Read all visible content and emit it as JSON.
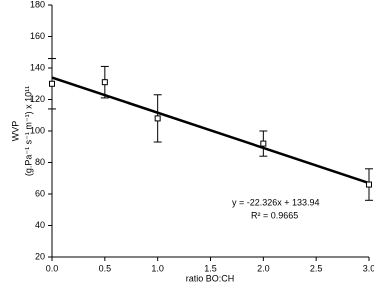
{
  "chart_data": {
    "type": "scatter",
    "x_label": "ratio BO:CH",
    "y_label": "WVP",
    "y_label_units": "(g.Pa⁻¹ s⁻¹ m⁻¹) x 10¹¹",
    "x": [
      0,
      0.5,
      1,
      2,
      3
    ],
    "values": [
      130,
      131,
      108,
      92,
      66
    ],
    "errors": [
      16,
      10,
      15,
      8,
      10
    ],
    "trendline": {
      "slope": -22.326,
      "intercept": 133.94,
      "equation": "y = -22.326x + 133.94",
      "r2": "R² = 0.9665"
    },
    "xlim": [
      0,
      3
    ],
    "ylim": [
      20,
      180
    ],
    "xticks": [
      {
        "value": 0,
        "label": "0.0"
      },
      0.5,
      {
        "value": 1,
        "label": "1.0"
      },
      1.5,
      {
        "value": 2,
        "label": "2.0"
      },
      2.5,
      {
        "value": 3,
        "label": "3.0"
      }
    ],
    "yticks": [
      20,
      40,
      60,
      80,
      100,
      120,
      140,
      160,
      180
    ],
    "color": "#000000",
    "grid": false
  }
}
